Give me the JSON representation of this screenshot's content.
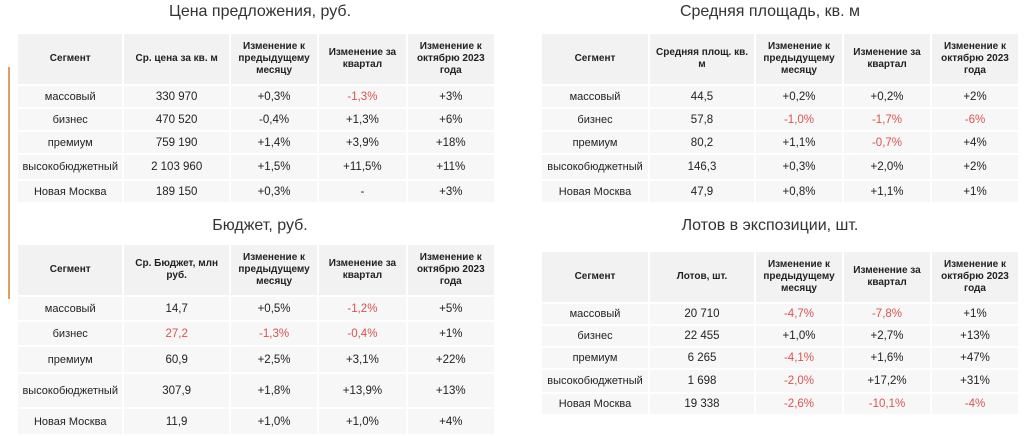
{
  "colors": {
    "negative": "#d9534f",
    "accent": "#e0a060",
    "header_bg": "#f2f2f2",
    "cell_bg": "#f7f7f7"
  },
  "tables": [
    {
      "title": "Цена предложения, руб.",
      "headers": [
        "Сегмент",
        "Ср. цена  за кв. м",
        "Изменение к предыдущему месяцу",
        "Изменение за квартал",
        "Изменение к октябрю 2023 года"
      ],
      "rows": [
        [
          "массовый",
          "330 970",
          "+0,3%",
          "-1,3%",
          "+3%"
        ],
        [
          "бизнес",
          "470 520",
          "-0,4%",
          "+1,3%",
          "+6%"
        ],
        [
          "премиум",
          "759 190",
          "+1,4%",
          "+3,9%",
          "+18%"
        ],
        [
          "высокобюджетный",
          "2 103 960",
          "+1,5%",
          "+11,5%",
          "+11%"
        ],
        [
          "Новая Москва",
          "189 150",
          "+0,3%",
          "-",
          "+3%"
        ]
      ]
    },
    {
      "title": "Средняя площадь, кв. м",
      "headers": [
        "Сегмент",
        "Средняя площ. кв. м",
        "Изменение к предыдущему месяцу",
        "Изменение за квартал",
        "Изменение к октябрю 2023 года"
      ],
      "rows": [
        [
          "массовый",
          "44,5",
          "+0,2%",
          "+0,2%",
          "+2%"
        ],
        [
          "бизнес",
          "57,8",
          "-1,0%",
          "-1,7%",
          "-6%"
        ],
        [
          "премиум",
          "80,2",
          "+1,1%",
          "-0,7%",
          "+4%"
        ],
        [
          "высокобюджетный",
          "146,3",
          "+0,3%",
          "+2,0%",
          "+2%"
        ],
        [
          "Новая Москва",
          "47,9",
          "+0,8%",
          "+1,1%",
          "+1%"
        ]
      ]
    },
    {
      "title": "Бюджет, руб.",
      "headers": [
        "Сегмент",
        "Ср. Бюджет, млн руб.",
        "Изменение к предыдущему месяцу",
        "Изменение за квартал",
        "Изменение к октябрю 2023 года"
      ],
      "rows": [
        [
          "массовый",
          "14,7",
          "+0,5%",
          "-1,2%",
          "+5%"
        ],
        [
          "бизнес",
          "27,2",
          "-1,3%",
          "-0,4%",
          "+1%"
        ],
        [
          "премиум",
          "60,9",
          "+2,5%",
          "+3,1%",
          "+22%"
        ],
        [
          "высокобюджетный",
          "307,9",
          "+1,8%",
          "+13,9%",
          "+13%"
        ],
        [
          "Новая Москва",
          "11,9",
          "+1,0%",
          "+1,0%",
          "+4%"
        ]
      ]
    },
    {
      "title": "Лотов в экспозиции, шт.",
      "headers": [
        "Сегмент",
        "Лотов, шт.",
        "Изменение к предыдущему месяцу",
        "Изменение за квартал",
        "Изменение к октябрю 2023 года"
      ],
      "rows": [
        [
          "массовый",
          "20 710",
          "-4,7%",
          "-7,8%",
          "+1%"
        ],
        [
          "бизнес",
          "22 455",
          "+1,0%",
          "+2,7%",
          "+13%"
        ],
        [
          "премиум",
          "6 265",
          "-4,1%",
          "+1,6%",
          "+47%"
        ],
        [
          "высокобюджетный",
          "1 698",
          "-2,0%",
          "+17,2%",
          "+31%"
        ],
        [
          "Новая Москва",
          "19 338",
          "-2,6%",
          "-10,1%",
          "-4%"
        ]
      ]
    }
  ],
  "red_cells": [
    [
      [
        0,
        3
      ]
    ],
    [
      [
        1,
        2
      ],
      [
        1,
        3
      ],
      [
        1,
        4
      ],
      [
        2,
        3
      ]
    ],
    [
      [
        0,
        3
      ],
      [
        1,
        1
      ],
      [
        1,
        2
      ],
      [
        1,
        3
      ]
    ],
    [
      [
        0,
        2
      ],
      [
        0,
        3
      ],
      [
        2,
        2
      ],
      [
        3,
        2
      ],
      [
        4,
        2
      ],
      [
        4,
        3
      ],
      [
        4,
        4
      ]
    ]
  ]
}
